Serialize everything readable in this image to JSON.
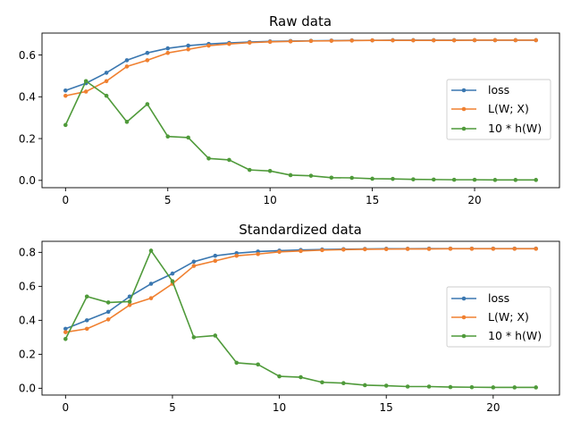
{
  "colors": {
    "loss": "#3a77b0",
    "lw": "#f08030",
    "h": "#4f9a3a"
  },
  "chart_data": [
    {
      "type": "line",
      "title": "Raw data",
      "xlim": [
        -1.15,
        24.15
      ],
      "ylim": [
        -0.035,
        0.705
      ],
      "xticks": [
        0,
        5,
        10,
        15,
        20
      ],
      "xtick_labels": [
        "0",
        "5",
        "10",
        "15",
        "20"
      ],
      "yticks": [
        0.0,
        0.2,
        0.4,
        0.6
      ],
      "ytick_labels": [
        "0.0",
        "0.2",
        "0.4",
        "0.6"
      ],
      "legend_loc": "center-right",
      "x": [
        0,
        1,
        2,
        3,
        4,
        5,
        6,
        7,
        8,
        9,
        10,
        11,
        12,
        13,
        14,
        15,
        16,
        17,
        18,
        19,
        20,
        21,
        22,
        23
      ],
      "series": [
        {
          "name": "loss",
          "color_key": "loss",
          "values": [
            0.43,
            0.465,
            0.515,
            0.575,
            0.61,
            0.632,
            0.645,
            0.653,
            0.658,
            0.662,
            0.665,
            0.667,
            0.668,
            0.669,
            0.67,
            0.67,
            0.671,
            0.671,
            0.671,
            0.671,
            0.671,
            0.671,
            0.671,
            0.671
          ]
        },
        {
          "name": "L(W; X)",
          "color_key": "lw",
          "values": [
            0.405,
            0.425,
            0.475,
            0.545,
            0.575,
            0.61,
            0.627,
            0.645,
            0.653,
            0.659,
            0.663,
            0.665,
            0.667,
            0.668,
            0.669,
            0.67,
            0.67,
            0.67,
            0.67,
            0.67,
            0.671,
            0.671,
            0.671,
            0.671
          ]
        },
        {
          "name": "10 * h(W)",
          "color_key": "h",
          "values": [
            0.265,
            0.475,
            0.405,
            0.28,
            0.365,
            0.21,
            0.205,
            0.105,
            0.098,
            0.05,
            0.045,
            0.025,
            0.022,
            0.013,
            0.012,
            0.008,
            0.007,
            0.005,
            0.004,
            0.003,
            0.003,
            0.002,
            0.002,
            0.002
          ]
        }
      ]
    },
    {
      "type": "line",
      "title": "Standardized data",
      "xlim": [
        -1.1,
        23.1
      ],
      "ylim": [
        -0.04,
        0.865
      ],
      "xticks": [
        0,
        5,
        10,
        15,
        20
      ],
      "xtick_labels": [
        "0",
        "5",
        "10",
        "15",
        "20"
      ],
      "yticks": [
        0.0,
        0.2,
        0.4,
        0.6,
        0.8
      ],
      "ytick_labels": [
        "0.0",
        "0.2",
        "0.4",
        "0.6",
        "0.8"
      ],
      "legend_loc": "center-right",
      "x": [
        0,
        1,
        2,
        3,
        4,
        5,
        6,
        7,
        8,
        9,
        10,
        11,
        12,
        13,
        14,
        15,
        16,
        17,
        18,
        19,
        20,
        21,
        22
      ],
      "series": [
        {
          "name": "loss",
          "color_key": "loss",
          "values": [
            0.35,
            0.4,
            0.45,
            0.54,
            0.615,
            0.675,
            0.745,
            0.78,
            0.795,
            0.805,
            0.81,
            0.814,
            0.817,
            0.819,
            0.82,
            0.821,
            0.821,
            0.822,
            0.822,
            0.822,
            0.822,
            0.822,
            0.822
          ]
        },
        {
          "name": "L(W; X)",
          "color_key": "lw",
          "values": [
            0.33,
            0.35,
            0.405,
            0.49,
            0.53,
            0.615,
            0.72,
            0.75,
            0.78,
            0.79,
            0.803,
            0.808,
            0.813,
            0.816,
            0.818,
            0.819,
            0.82,
            0.82,
            0.821,
            0.821,
            0.821,
            0.821,
            0.821
          ]
        },
        {
          "name": "10 * h(W)",
          "color_key": "h",
          "values": [
            0.29,
            0.54,
            0.505,
            0.51,
            0.81,
            0.63,
            0.3,
            0.31,
            0.15,
            0.14,
            0.07,
            0.065,
            0.035,
            0.03,
            0.018,
            0.015,
            0.01,
            0.01,
            0.007,
            0.006,
            0.005,
            0.005,
            0.005
          ]
        }
      ]
    }
  ]
}
